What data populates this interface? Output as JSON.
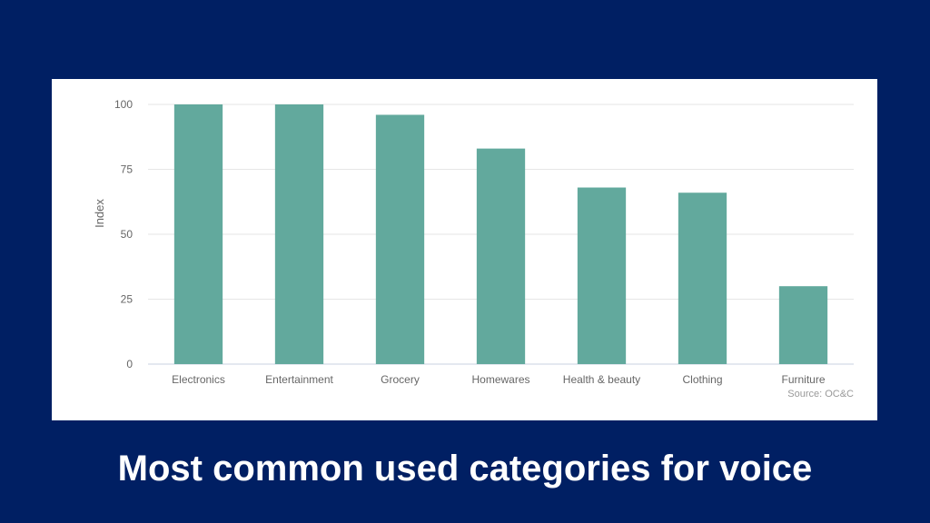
{
  "caption": "Most common used categories for voice",
  "colors": {
    "background": "#001f63",
    "card": "#ffffff",
    "bar": "#62a99d",
    "grid": "#e6e6e6",
    "tick_text": "#666666",
    "source_text": "#999999"
  },
  "chart_data": {
    "type": "bar",
    "categories": [
      "Electronics",
      "Entertainment",
      "Grocery",
      "Homewares",
      "Health & beauty",
      "Clothing",
      "Furniture"
    ],
    "values": [
      100,
      100,
      96,
      83,
      68,
      66,
      30
    ],
    "ylabel": "Index",
    "xlabel": "",
    "ylim": [
      0,
      100
    ],
    "yticks": [
      0,
      25,
      50,
      75,
      100
    ],
    "grid": true,
    "source": "Source: OC&C"
  }
}
